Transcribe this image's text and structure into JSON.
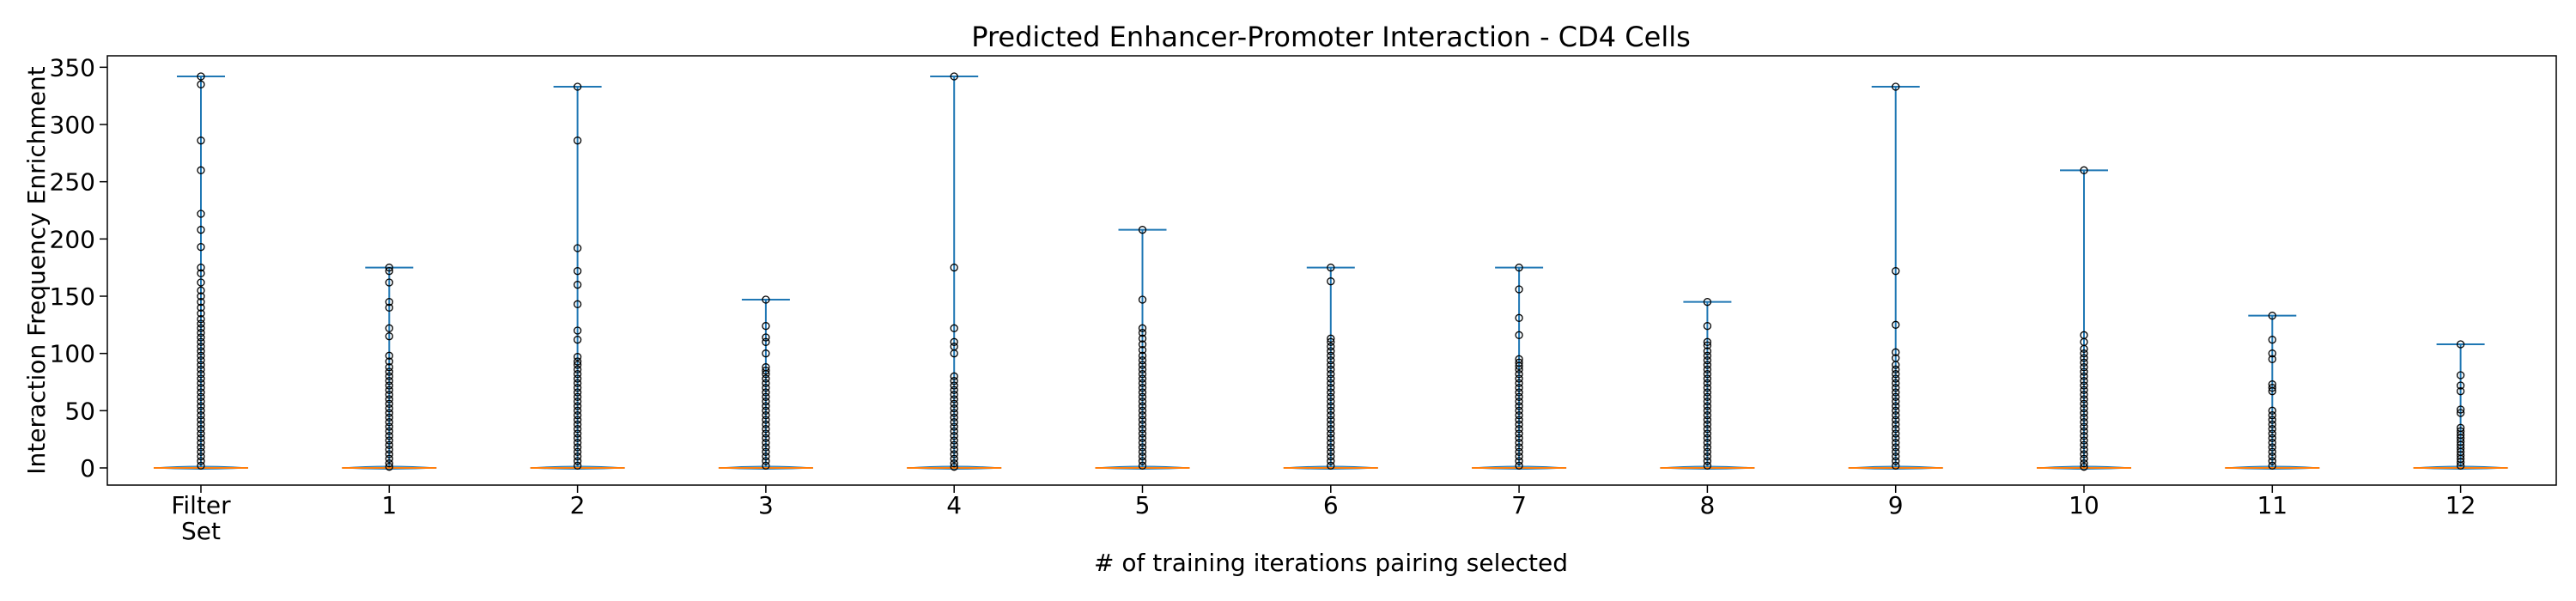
{
  "chart_data": {
    "type": "violin",
    "title": "Predicted Enhancer-Promoter Interaction - CD4 Cells",
    "xlabel": "# of training iterations pairing selected",
    "ylabel": "Interaction Frequency Enrichment",
    "ylim": [
      -15,
      360
    ],
    "yticks": [
      0,
      50,
      100,
      150,
      200,
      250,
      300,
      350
    ],
    "categories": [
      "Filter\nSet",
      "1",
      "2",
      "3",
      "4",
      "5",
      "6",
      "7",
      "8",
      "9",
      "10",
      "11",
      "12"
    ],
    "series": [
      {
        "max": 342,
        "median": 0,
        "outliers": [
          342,
          335,
          286,
          260,
          222,
          208,
          193,
          175,
          170,
          162,
          155,
          150,
          145,
          140,
          135,
          130,
          126,
          122,
          118,
          114,
          110,
          106,
          102,
          98,
          94,
          90,
          86,
          82,
          78,
          74,
          70,
          66,
          62,
          58,
          54,
          50,
          46,
          42,
          38,
          34,
          30,
          26,
          22,
          18,
          14,
          10,
          6,
          2
        ]
      },
      {
        "max": 175,
        "median": 0,
        "outliers": [
          175,
          172,
          162,
          145,
          140,
          122,
          115,
          98,
          93,
          88,
          84,
          80,
          76,
          72,
          68,
          64,
          60,
          56,
          52,
          48,
          44,
          40,
          36,
          32,
          28,
          24,
          20,
          16,
          12,
          8,
          4,
          1
        ]
      },
      {
        "max": 333,
        "median": 0,
        "outliers": [
          333,
          286,
          192,
          172,
          160,
          143,
          120,
          112,
          97,
          93,
          90,
          86,
          82,
          78,
          74,
          70,
          66,
          62,
          58,
          54,
          50,
          46,
          42,
          38,
          34,
          30,
          26,
          22,
          18,
          14,
          10,
          6,
          2
        ]
      },
      {
        "max": 147,
        "median": 0,
        "outliers": [
          147,
          124,
          114,
          110,
          100,
          88,
          85,
          82,
          78,
          74,
          70,
          66,
          62,
          58,
          54,
          50,
          46,
          42,
          38,
          34,
          30,
          26,
          22,
          18,
          14,
          10,
          6,
          2
        ]
      },
      {
        "max": 342,
        "median": 0,
        "outliers": [
          342,
          175,
          122,
          110,
          106,
          100,
          80,
          76,
          72,
          68,
          64,
          60,
          56,
          52,
          48,
          44,
          40,
          36,
          32,
          28,
          24,
          20,
          16,
          12,
          8,
          4,
          1
        ]
      },
      {
        "max": 208,
        "median": 0,
        "outliers": [
          208,
          147,
          122,
          118,
          113,
          108,
          103,
          98,
          94,
          90,
          86,
          82,
          78,
          74,
          70,
          66,
          62,
          58,
          54,
          50,
          46,
          42,
          38,
          34,
          30,
          26,
          22,
          18,
          14,
          10,
          6,
          2
        ]
      },
      {
        "max": 175,
        "median": 0,
        "outliers": [
          175,
          163,
          113,
          110,
          106,
          102,
          98,
          94,
          90,
          86,
          82,
          78,
          74,
          70,
          66,
          62,
          58,
          54,
          50,
          46,
          42,
          38,
          34,
          30,
          26,
          22,
          18,
          14,
          10,
          6,
          2
        ]
      },
      {
        "max": 175,
        "median": 0,
        "outliers": [
          175,
          156,
          131,
          116,
          95,
          92,
          89,
          86,
          82,
          78,
          74,
          70,
          66,
          62,
          58,
          54,
          50,
          46,
          42,
          38,
          34,
          30,
          26,
          22,
          18,
          14,
          10,
          6,
          2
        ]
      },
      {
        "max": 145,
        "median": 0,
        "outliers": [
          145,
          124,
          110,
          107,
          102,
          98,
          94,
          90,
          86,
          82,
          78,
          74,
          70,
          66,
          62,
          58,
          54,
          50,
          46,
          42,
          38,
          34,
          30,
          26,
          22,
          18,
          14,
          10,
          6,
          2
        ]
      },
      {
        "max": 333,
        "median": 0,
        "outliers": [
          333,
          172,
          125,
          101,
          96,
          90,
          86,
          82,
          78,
          74,
          70,
          66,
          62,
          58,
          54,
          50,
          46,
          42,
          38,
          34,
          30,
          26,
          22,
          18,
          14,
          10,
          6,
          2
        ]
      },
      {
        "max": 260,
        "median": 0,
        "outliers": [
          260,
          116,
          110,
          104,
          100,
          96,
          92,
          88,
          84,
          80,
          76,
          72,
          68,
          64,
          60,
          56,
          52,
          48,
          44,
          40,
          36,
          32,
          28,
          24,
          20,
          16,
          12,
          8,
          4,
          1
        ]
      },
      {
        "max": 133,
        "median": 0,
        "outliers": [
          133,
          112,
          100,
          95,
          73,
          70,
          67,
          50,
          46,
          42,
          38,
          34,
          30,
          26,
          22,
          18,
          14,
          10,
          6,
          2
        ]
      },
      {
        "max": 108,
        "median": 0,
        "outliers": [
          108,
          81,
          72,
          67,
          51,
          48,
          35,
          32,
          29,
          26,
          23,
          20,
          17,
          14,
          11,
          8,
          5,
          2
        ]
      }
    ],
    "grid": false,
    "legend": "none",
    "colors": {
      "whisker": "#1f77b4",
      "median": "#ff7f0e",
      "outlier_edge": "#000000"
    }
  }
}
